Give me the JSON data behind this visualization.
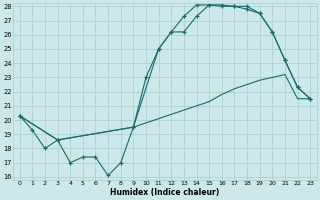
{
  "xlabel": "Humidex (Indice chaleur)",
  "bg_color": "#cce8e8",
  "line_color": "#1a6b6b",
  "grid_color": "#aacccc",
  "ylim": [
    16,
    28
  ],
  "xlim": [
    -0.5,
    23.5
  ],
  "yticks": [
    16,
    17,
    18,
    19,
    20,
    21,
    22,
    23,
    24,
    25,
    26,
    27,
    28
  ],
  "xticks": [
    0,
    1,
    2,
    3,
    4,
    5,
    6,
    7,
    8,
    9,
    10,
    11,
    12,
    13,
    14,
    15,
    16,
    17,
    18,
    19,
    20,
    21,
    22,
    23
  ],
  "line1_x": [
    0,
    1,
    2,
    3,
    4,
    5,
    6,
    7,
    8,
    9,
    10,
    11,
    12,
    13,
    14,
    15,
    16,
    17,
    18,
    19,
    20,
    21,
    22,
    23
  ],
  "line1_y": [
    20.3,
    19.3,
    18.0,
    18.6,
    17.0,
    17.4,
    17.4,
    16.1,
    17.0,
    19.5,
    23.0,
    25.0,
    26.2,
    26.2,
    27.3,
    28.1,
    28.1,
    28.0,
    28.0,
    27.5,
    26.2,
    24.2,
    22.3,
    21.5
  ],
  "line2_x": [
    0,
    3,
    9,
    11,
    12,
    13,
    14,
    15,
    16,
    17,
    18,
    19,
    20,
    21,
    22,
    23
  ],
  "line2_y": [
    20.3,
    18.6,
    19.5,
    25.0,
    26.2,
    27.3,
    28.1,
    28.1,
    28.0,
    28.0,
    27.8,
    27.5,
    26.2,
    24.2,
    22.3,
    21.5
  ],
  "line3_x": [
    0,
    3,
    9,
    14,
    15,
    16,
    17,
    18,
    19,
    20,
    21,
    22,
    23
  ],
  "line3_y": [
    20.3,
    18.6,
    19.5,
    21.0,
    21.3,
    21.8,
    22.2,
    22.5,
    22.8,
    23.0,
    23.2,
    21.5,
    21.5
  ]
}
